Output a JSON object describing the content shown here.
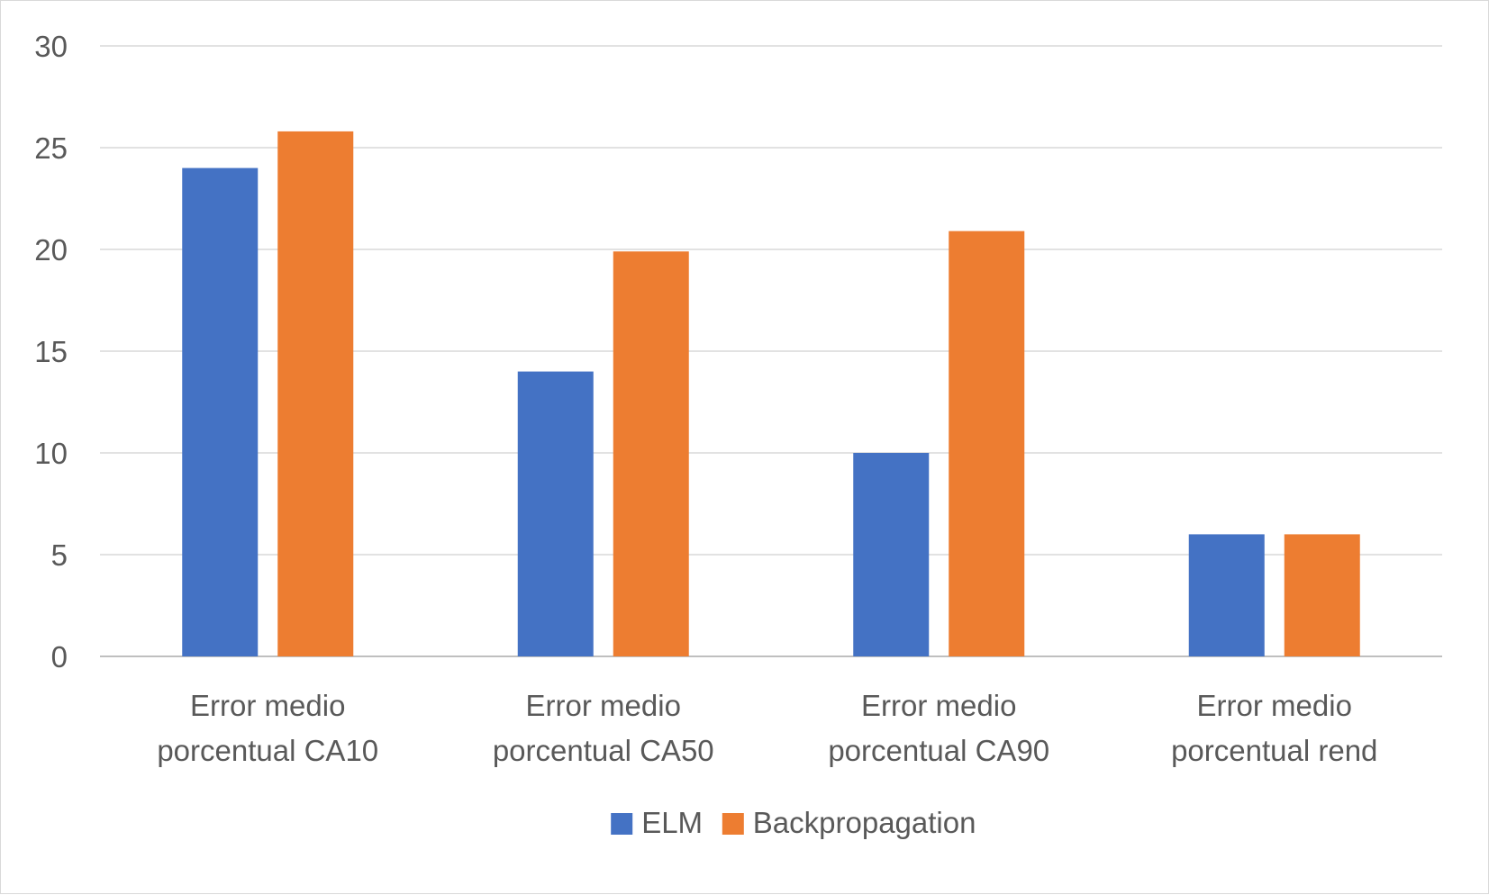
{
  "chart_data": {
    "type": "bar",
    "title": "",
    "xlabel": "",
    "ylabel": "",
    "ylim": [
      0,
      30
    ],
    "yticks": [
      0,
      5,
      10,
      15,
      20,
      25,
      30
    ],
    "grid": true,
    "legend_position": "bottom",
    "categories": [
      [
        "Error medio",
        "porcentual CA10"
      ],
      [
        "Error medio",
        "porcentual CA50"
      ],
      [
        "Error medio",
        "porcentual CA90"
      ],
      [
        "Error medio",
        "porcentual rend"
      ]
    ],
    "series": [
      {
        "name": "ELM",
        "color": "#4472C4",
        "values": [
          24,
          14,
          10,
          6
        ]
      },
      {
        "name": "Backpropagation",
        "color": "#ED7D31",
        "values": [
          25.8,
          19.9,
          20.9,
          6
        ]
      }
    ]
  }
}
